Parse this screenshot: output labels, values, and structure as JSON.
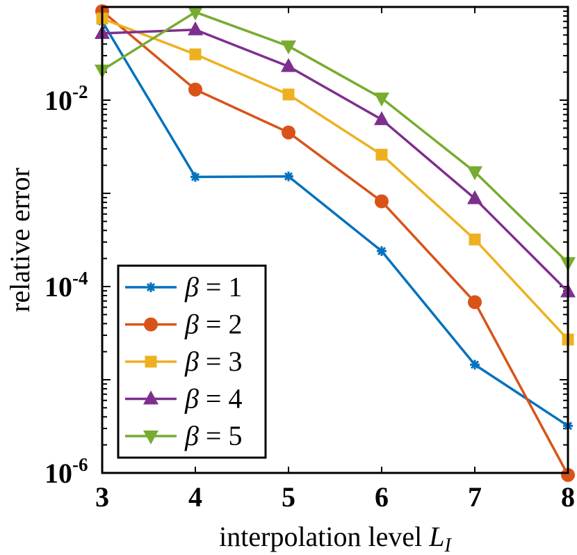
{
  "chart_data": {
    "type": "line",
    "xlabel": "interpolation level L_I",
    "xlabel_main": "interpolation level ",
    "xlabel_var": "L",
    "xlabel_sub": "I",
    "ylabel": "relative error",
    "yscale": "log",
    "xlim": [
      3,
      8
    ],
    "ylim": [
      1e-06,
      0.1
    ],
    "x": [
      3,
      4,
      5,
      6,
      7,
      8
    ],
    "x_tick_labels": [
      "3",
      "4",
      "5",
      "6",
      "7",
      "8"
    ],
    "y_ticks": [
      {
        "value": 1e-06,
        "base": "10",
        "exp": "-6"
      },
      {
        "value": 0.0001,
        "base": "10",
        "exp": "-4"
      },
      {
        "value": 0.01,
        "base": "10",
        "exp": "-2"
      }
    ],
    "legend_position": "bottom-left",
    "series": [
      {
        "name": "β = 1",
        "symbol": "β",
        "eq": "= 1",
        "color": "#0072BD",
        "marker": "asterisk",
        "values": [
          0.07,
          0.0015,
          0.00152,
          0.00024,
          1.45e-05,
          3.2e-06
        ]
      },
      {
        "name": "β = 2",
        "symbol": "β",
        "eq": "= 2",
        "color": "#D95319",
        "marker": "circle",
        "values": [
          0.09,
          0.013,
          0.0045,
          0.00082,
          6.8e-05,
          9.5e-07
        ]
      },
      {
        "name": "β = 3",
        "symbol": "β",
        "eq": "= 3",
        "color": "#EDB120",
        "marker": "square",
        "values": [
          0.075,
          0.031,
          0.0115,
          0.0026,
          0.00032,
          2.7e-05
        ]
      },
      {
        "name": "β = 4",
        "symbol": "β",
        "eq": "= 4",
        "color": "#7E2F8E",
        "marker": "triangle-up",
        "values": [
          0.052,
          0.057,
          0.023,
          0.0062,
          0.00088,
          8.8e-05
        ]
      },
      {
        "name": "β = 5",
        "symbol": "β",
        "eq": "= 5",
        "color": "#77AC30",
        "marker": "triangle-down",
        "values": [
          0.021,
          0.088,
          0.038,
          0.0105,
          0.0017,
          0.00018
        ]
      }
    ]
  }
}
